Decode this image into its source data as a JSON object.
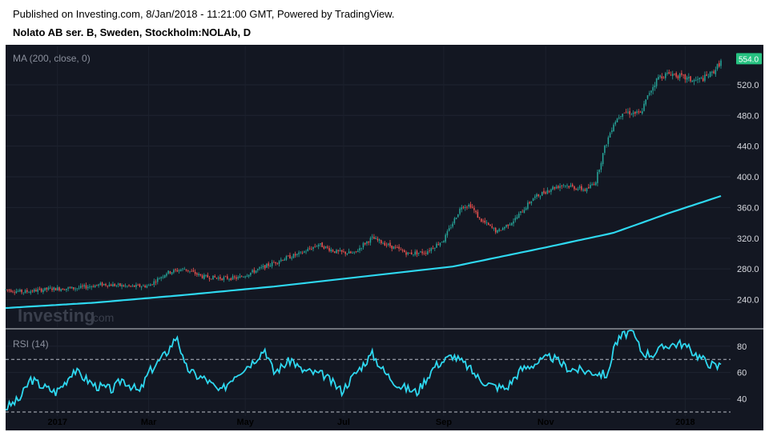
{
  "header": {
    "published": "Published on Investing.com, 8/Jan/2018 - 11:21:00 GMT, Powered by TradingView.",
    "instrument": "Nolato AB ser. B, Sweden, Stockholm:NOLAb, D"
  },
  "watermark": {
    "brand": "Investing",
    "suffix": ".com"
  },
  "colors": {
    "background": "#131722",
    "up": "#26a69a",
    "down": "#ef5350",
    "ma": "#2ed8f0",
    "rsi": "#2ed8f0",
    "last_price": "#26c281"
  },
  "chart_data": [
    {
      "type": "candlestick",
      "indicator_label": "MA (200, close, 0)",
      "ylim": [
        204,
        570
      ],
      "yticks": [
        240.0,
        280.0,
        320.0,
        360.0,
        400.0,
        440.0,
        480.0,
        520.0
      ],
      "ytick_labels": [
        "240.0",
        "280.0",
        "320.0",
        "360.0",
        "400.0",
        "440.0",
        "480.0",
        "520.0"
      ],
      "last_price": 554.0,
      "last_price_label": "554.0",
      "price_path_anchors": [
        [
          0,
          253
        ],
        [
          10,
          250
        ],
        [
          25,
          254
        ],
        [
          40,
          255
        ],
        [
          55,
          260
        ],
        [
          70,
          257
        ],
        [
          80,
          258
        ],
        [
          90,
          275
        ],
        [
          100,
          280
        ],
        [
          110,
          270
        ],
        [
          120,
          268
        ],
        [
          130,
          268
        ],
        [
          140,
          278
        ],
        [
          155,
          293
        ],
        [
          165,
          300
        ],
        [
          175,
          312
        ],
        [
          185,
          302
        ],
        [
          195,
          300
        ],
        [
          200,
          312
        ],
        [
          205,
          320
        ],
        [
          215,
          310
        ],
        [
          225,
          300
        ],
        [
          235,
          302
        ],
        [
          245,
          318
        ],
        [
          250,
          340
        ],
        [
          255,
          362
        ],
        [
          260,
          363
        ],
        [
          265,
          345
        ],
        [
          275,
          328
        ],
        [
          285,
          345
        ],
        [
          295,
          372
        ],
        [
          305,
          385
        ],
        [
          312,
          390
        ],
        [
          320,
          385
        ],
        [
          325,
          383
        ],
        [
          330,
          395
        ],
        [
          335,
          438
        ],
        [
          340,
          470
        ],
        [
          345,
          485
        ],
        [
          355,
          482
        ],
        [
          360,
          510
        ],
        [
          365,
          530
        ],
        [
          372,
          535
        ],
        [
          378,
          530
        ],
        [
          385,
          525
        ],
        [
          390,
          528
        ],
        [
          395,
          535
        ],
        [
          400,
          550
        ]
      ],
      "ma_anchors": [
        [
          0,
          229
        ],
        [
          50,
          236
        ],
        [
          100,
          246
        ],
        [
          150,
          257
        ],
        [
          200,
          270
        ],
        [
          250,
          283
        ],
        [
          300,
          307
        ],
        [
          340,
          327
        ],
        [
          370,
          352
        ],
        [
          400,
          375
        ]
      ]
    },
    {
      "type": "line",
      "indicator_label": "RSI (14)",
      "ylim": [
        27,
        92
      ],
      "yticks": [
        40,
        60,
        80
      ],
      "ytick_labels": [
        "40",
        "60",
        "80"
      ],
      "guide_levels": [
        30,
        70
      ],
      "rsi_anchors": [
        [
          0,
          33
        ],
        [
          8,
          40
        ],
        [
          14,
          55
        ],
        [
          20,
          50
        ],
        [
          28,
          45
        ],
        [
          33,
          52
        ],
        [
          38,
          62
        ],
        [
          42,
          58
        ],
        [
          50,
          50
        ],
        [
          60,
          47
        ],
        [
          65,
          55
        ],
        [
          75,
          45
        ],
        [
          80,
          60
        ],
        [
          90,
          75
        ],
        [
          96,
          88
        ],
        [
          100,
          65
        ],
        [
          106,
          58
        ],
        [
          112,
          55
        ],
        [
          120,
          45
        ],
        [
          128,
          58
        ],
        [
          138,
          68
        ],
        [
          145,
          78
        ],
        [
          150,
          60
        ],
        [
          160,
          70
        ],
        [
          165,
          62
        ],
        [
          178,
          58
        ],
        [
          188,
          46
        ],
        [
          196,
          60
        ],
        [
          205,
          74
        ],
        [
          212,
          60
        ],
        [
          220,
          50
        ],
        [
          230,
          45
        ],
        [
          240,
          65
        ],
        [
          250,
          73
        ],
        [
          258,
          65
        ],
        [
          265,
          55
        ],
        [
          272,
          50
        ],
        [
          280,
          48
        ],
        [
          288,
          62
        ],
        [
          298,
          68
        ],
        [
          305,
          72
        ],
        [
          315,
          63
        ],
        [
          330,
          60
        ],
        [
          337,
          58
        ],
        [
          340,
          80
        ],
        [
          345,
          88
        ],
        [
          350,
          92
        ],
        [
          356,
          75
        ],
        [
          362,
          74
        ],
        [
          370,
          81
        ],
        [
          378,
          82
        ],
        [
          385,
          75
        ],
        [
          392,
          68
        ],
        [
          398,
          64
        ],
        [
          400,
          67
        ]
      ]
    }
  ],
  "x_axis": {
    "ticks": [
      "2017",
      "Mar",
      "May",
      "Jul",
      "Sep",
      "Nov",
      "2018"
    ],
    "tick_positions": [
      29,
      80,
      134,
      189,
      245,
      302,
      380
    ]
  }
}
